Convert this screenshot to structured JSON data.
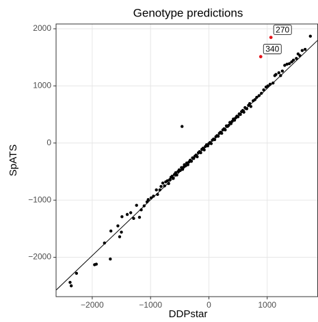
{
  "chart_data": {
    "type": "scatter",
    "title": "Genotype predictions",
    "x_label": "DDPstar",
    "y_label": "SpATS",
    "color": "#000000",
    "highlight_color": "#e4141b",
    "grid": true,
    "xlim": [
      -2620,
      1871
    ],
    "ylim": [
      -2689,
      2084
    ],
    "xticks": [
      {
        "value": -2000,
        "label": "−2000"
      },
      {
        "value": -1000,
        "label": "−1000"
      },
      0,
      1000
    ],
    "yticks": [
      {
        "value": -2000,
        "label": "−2000"
      },
      {
        "value": -1000,
        "label": "−1000"
      },
      0,
      1000,
      2000
    ],
    "reference_line": {
      "intercept": -20,
      "slope": 0.975
    },
    "x": [
      -2380,
      -2360,
      -2270,
      -1960,
      -1930,
      -1790,
      -1690,
      -1680,
      -1560,
      -1530,
      -1500,
      -1490,
      -1400,
      -1340,
      -1290,
      -1240,
      -1190,
      -1160,
      -1110,
      -1060,
      -1040,
      -990,
      -950,
      -900,
      -880,
      -840,
      -820,
      -790,
      -760,
      -740,
      -710,
      -690,
      -670,
      -650,
      -630,
      -610,
      -590,
      -570,
      -550,
      -530,
      -510,
      -490,
      -470,
      -450,
      -430,
      -420,
      -400,
      -380,
      -360,
      -340,
      -320,
      -300,
      -280,
      -260,
      -240,
      -220,
      -200,
      -180,
      -160,
      -140,
      -120,
      -100,
      -80,
      -60,
      -40,
      -20,
      0,
      20,
      40,
      60,
      80,
      100,
      120,
      140,
      160,
      180,
      200,
      220,
      240,
      260,
      280,
      300,
      320,
      340,
      360,
      380,
      400,
      420,
      440,
      460,
      480,
      500,
      520,
      540,
      560,
      580,
      600,
      620,
      650,
      680,
      700,
      720,
      760,
      790,
      820,
      860,
      900,
      940,
      980,
      1010,
      1050,
      1100,
      1130,
      1150,
      1200,
      1230,
      1260,
      1300,
      1340,
      1380,
      1420,
      1450,
      1500,
      1530,
      1560,
      1600,
      1650,
      1740,
      -460
    ],
    "values": [
      -2440,
      -2500,
      -2280,
      -2130,
      -2120,
      -1750,
      -2030,
      -1540,
      -1450,
      -1640,
      -1560,
      -1290,
      -1250,
      -1220,
      -1320,
      -1090,
      -1300,
      -1170,
      -1100,
      -1030,
      -990,
      -960,
      -930,
      -820,
      -900,
      -820,
      -760,
      -700,
      -750,
      -680,
      -660,
      -710,
      -640,
      -600,
      -580,
      -620,
      -550,
      -520,
      -560,
      -500,
      -470,
      -480,
      -430,
      -460,
      -420,
      -380,
      -400,
      -350,
      -380,
      -330,
      -300,
      -320,
      -260,
      -270,
      -230,
      -210,
      -240,
      -170,
      -150,
      -170,
      -110,
      -90,
      -120,
      -60,
      -30,
      -50,
      -10,
      10,
      -10,
      50,
      70,
      60,
      110,
      130,
      120,
      170,
      190,
      170,
      230,
      250,
      230,
      300,
      290,
      310,
      360,
      340,
      380,
      420,
      400,
      440,
      470,
      460,
      510,
      500,
      550,
      570,
      540,
      620,
      600,
      660,
      690,
      640,
      740,
      760,
      800,
      830,
      870,
      930,
      980,
      1000,
      1030,
      1050,
      1180,
      1200,
      1230,
      1180,
      1260,
      1360,
      1380,
      1390,
      1420,
      1450,
      1480,
      1560,
      1530,
      1620,
      1640,
      1870,
      290
    ],
    "annotations": [
      {
        "label": "270",
        "x": 1064,
        "y": 1849
      },
      {
        "label": "340",
        "x": 889,
        "y": 1512
      }
    ]
  }
}
